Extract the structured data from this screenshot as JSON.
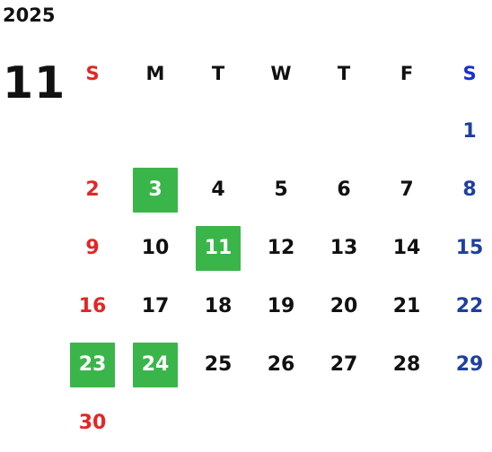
{
  "calendar": {
    "year": "2025",
    "month": "11",
    "weekdays": [
      "S",
      "M",
      "T",
      "W",
      "T",
      "F",
      "S"
    ],
    "weeks": [
      [
        "",
        "",
        "",
        "",
        "",
        "",
        "1"
      ],
      [
        "2",
        "3",
        "4",
        "5",
        "6",
        "7",
        "8"
      ],
      [
        "9",
        "10",
        "11",
        "12",
        "13",
        "14",
        "15"
      ],
      [
        "16",
        "17",
        "18",
        "19",
        "20",
        "21",
        "22"
      ],
      [
        "23",
        "24",
        "25",
        "26",
        "27",
        "28",
        "29"
      ],
      [
        "30",
        "",
        "",
        "",
        "",
        "",
        ""
      ]
    ],
    "highlighted_days": [
      "3",
      "11",
      "23",
      "24"
    ]
  },
  "colors": {
    "sunday": "#e32626",
    "saturday_header": "#1a2fd6",
    "saturday": "#1f3fa0",
    "weekday": "#111111",
    "highlight_bg": "#3ab54a",
    "highlight_text": "#ffffff"
  }
}
